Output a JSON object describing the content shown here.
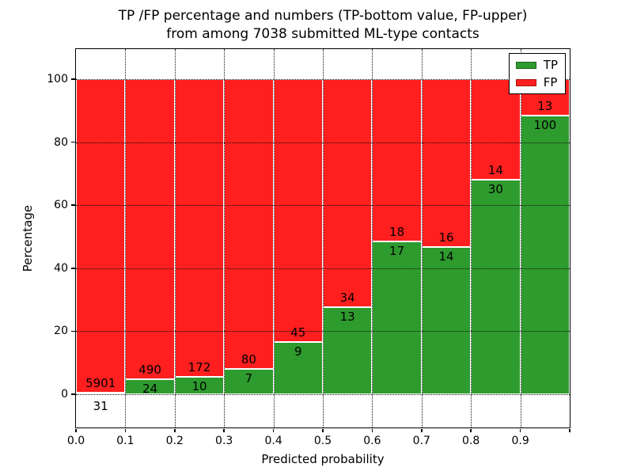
{
  "title": {
    "line1": "TP /FP percentage and numbers (TP-bottom value, FP-upper)",
    "line2": "from among 7038 submitted ML-type contacts"
  },
  "axes": {
    "xlabel": "Predicted probability",
    "ylabel": "Percentage",
    "x_tick_labels": [
      "0.0",
      "0.1",
      "0.2",
      "0.3",
      "0.4",
      "0.5",
      "0.6",
      "0.7",
      "0.8",
      "0.9"
    ],
    "y_tick_labels": [
      "0",
      "20",
      "40",
      "60",
      "80",
      "100"
    ]
  },
  "legend": {
    "items": [
      {
        "label": "TP",
        "color": "#2e9b2e"
      },
      {
        "label": "FP",
        "color": "#ff1f1f"
      }
    ]
  },
  "chart_data": {
    "type": "bar",
    "stacked": true,
    "normalized_to_percent": true,
    "title": "TP /FP percentage and numbers (TP-bottom value, FP-upper) from among 7038 submitted ML-type contacts",
    "xlabel": "Predicted probability",
    "ylabel": "Percentage",
    "bin_left_edges": [
      0.0,
      0.1,
      0.2,
      0.3,
      0.4,
      0.5,
      0.6,
      0.7,
      0.8,
      0.9
    ],
    "bin_width": 0.1,
    "categories": [
      "0.0-0.1",
      "0.1-0.2",
      "0.2-0.3",
      "0.3-0.4",
      "0.4-0.5",
      "0.5-0.6",
      "0.6-0.7",
      "0.7-0.8",
      "0.8-0.9",
      "0.9-1.0"
    ],
    "series": [
      {
        "name": "TP",
        "color": "#2e9b2e",
        "counts": [
          31,
          24,
          10,
          7,
          9,
          13,
          17,
          14,
          30,
          100
        ]
      },
      {
        "name": "FP",
        "color": "#ff1f1f",
        "counts": [
          5901,
          490,
          172,
          80,
          45,
          34,
          18,
          16,
          14,
          13
        ]
      }
    ],
    "total_contacts": 7038,
    "xlim": [
      0,
      1
    ],
    "ylim": [
      -11,
      110
    ],
    "y_ticks": [
      0,
      20,
      40,
      60,
      80,
      100
    ],
    "grid": "dotted",
    "legend_position": "upper right",
    "note": "Each bar is normalized to 100%; green TP share on bottom, red FP share on top. Labels show raw counts (TP below boundary, FP above)."
  }
}
